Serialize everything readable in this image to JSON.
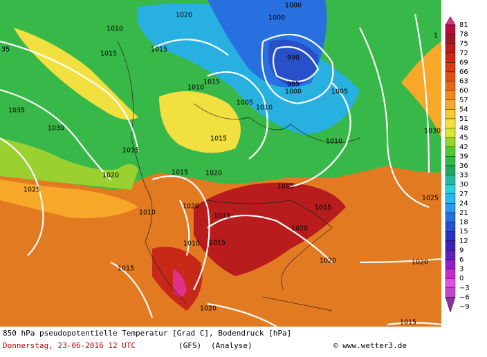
{
  "map": {
    "caption": "850 hPa pseudopotentielle Temperatur [Grad C], Bodendruck [hPa]",
    "date": "Donnerstag, 23-06-2016  12 UTC",
    "model": "(GFS)",
    "run": "(Analyse)",
    "credit": "© www.wetter3.de",
    "isobar_labels": [
      "1020",
      "1000",
      "1000",
      "1010",
      "1015",
      "1015",
      "990",
      "995",
      "1000",
      "1005",
      "1010",
      "1015",
      "1005",
      "1010",
      "1035",
      "1030",
      "1015",
      "1015",
      "1020",
      "1020",
      "1010",
      "1015",
      "1025",
      "1015",
      "1010",
      "1020",
      "1015",
      "1020",
      "1015",
      "1015",
      "1010",
      "1020",
      "1015",
      "1020",
      "1020",
      "1015",
      "1025",
      "1030",
      "35",
      "1"
    ],
    "colorbar": {
      "ticks": [
        81,
        78,
        75,
        72,
        69,
        66,
        63,
        60,
        57,
        54,
        51,
        48,
        45,
        42,
        39,
        36,
        33,
        30,
        27,
        24,
        21,
        18,
        15,
        12,
        9,
        6,
        3,
        0,
        {
          "value": -3,
          "label": "−3"
        },
        {
          "value": -6,
          "label": "−6"
        },
        {
          "value": -9,
          "label": "−9"
        }
      ],
      "colors": [
        "#e0308a",
        "#b0103a",
        "#a01828",
        "#b81c1c",
        "#c82818",
        "#d83c10",
        "#e05010",
        "#e86818",
        "#f08820",
        "#f8a828",
        "#f8c830",
        "#f8e040",
        "#d8e830",
        "#90d828",
        "#50c830",
        "#30b848",
        "#20a860",
        "#28b8a0",
        "#28d0d8",
        "#28b8f0",
        "#2898f0",
        "#2870e0",
        "#2850d0",
        "#2830c0",
        "#4020b8",
        "#6020c0",
        "#9020c8",
        "#c828c8",
        "#e050e8",
        "#c048c8",
        "#9030a0"
      ]
    }
  }
}
